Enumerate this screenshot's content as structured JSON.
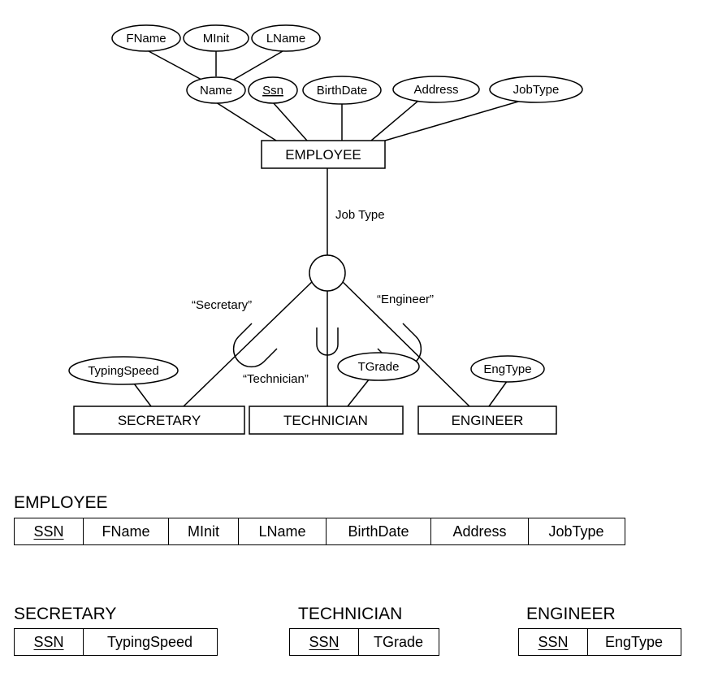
{
  "er": {
    "employee": "EMPLOYEE",
    "attrs": {
      "fname": "FName",
      "minit": "MInit",
      "lname": "LName",
      "name": "Name",
      "ssn": "Ssn",
      "birthdate": "BirthDate",
      "address": "Address",
      "jobtype": "JobType"
    },
    "discriminator": "Job Type",
    "conditions": {
      "secretary": "“Secretary”",
      "technician": "“Technician”",
      "engineer": "“Engineer”"
    },
    "subclasses": {
      "secretary": "SECRETARY",
      "technician": "TECHNICIAN",
      "engineer": "ENGINEER"
    },
    "sub_attrs": {
      "typingspeed": "TypingSpeed",
      "tgrade": "TGrade",
      "engtype": "EngType"
    }
  },
  "tables": {
    "employee": {
      "title": "EMPLOYEE",
      "columns": [
        "SSN",
        "FName",
        "MInit",
        "LName",
        "BirthDate",
        "Address",
        "JobType"
      ]
    },
    "secretary": {
      "title": "SECRETARY",
      "columns": [
        "SSN",
        "TypingSpeed"
      ]
    },
    "technician": {
      "title": "TECHNICIAN",
      "columns": [
        "SSN",
        "TGrade"
      ]
    },
    "engineer": {
      "title": "ENGINEER",
      "columns": [
        "SSN",
        "EngType"
      ]
    }
  }
}
